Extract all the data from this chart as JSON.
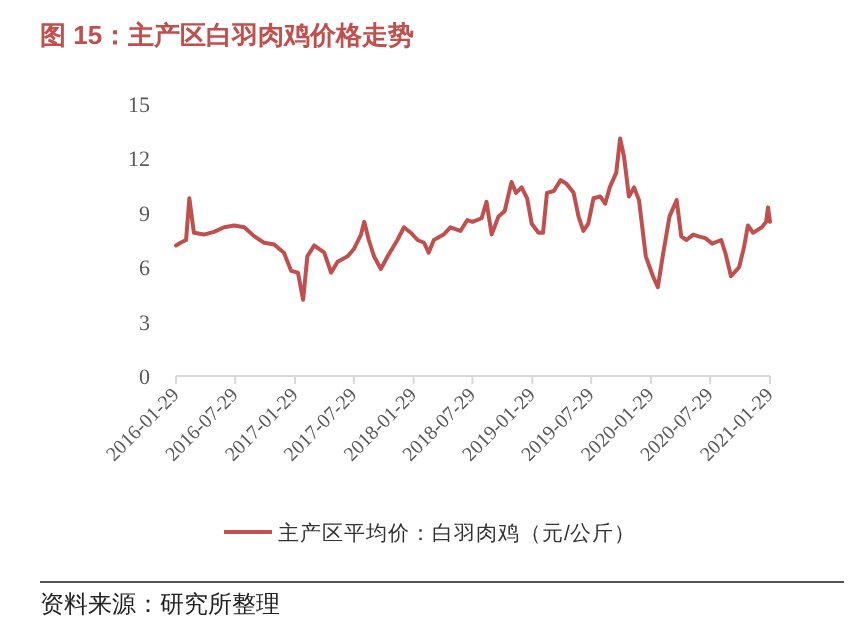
{
  "chart_data": {
    "type": "line",
    "title": "图 15：主产区白羽肉鸡价格走势",
    "annotations": [
      "资料来源：研究所整理"
    ],
    "x": [
      "2016-01-29",
      "2016-02-12",
      "2016-02-29",
      "2016-03-10",
      "2016-03-24",
      "2016-04-24",
      "2016-05-25",
      "2016-06-25",
      "2016-07-26",
      "2016-08-26",
      "2016-09-26",
      "2016-10-26",
      "2016-11-26",
      "2016-12-26",
      "2017-01-17",
      "2017-02-07",
      "2017-02-23",
      "2017-03-08",
      "2017-03-29",
      "2017-04-29",
      "2017-05-20",
      "2017-06-09",
      "2017-07-10",
      "2017-07-29",
      "2017-08-20",
      "2017-08-30",
      "2017-09-13",
      "2017-09-29",
      "2017-10-20",
      "2017-11-10",
      "2017-12-10",
      "2017-12-30",
      "2018-01-20",
      "2018-02-10",
      "2018-03-02",
      "2018-03-16",
      "2018-04-01",
      "2018-05-01",
      "2018-05-22",
      "2018-06-22",
      "2018-07-13",
      "2018-07-29",
      "2018-08-26",
      "2018-09-10",
      "2018-09-26",
      "2018-10-17",
      "2018-11-05",
      "2018-11-26",
      "2018-12-10",
      "2018-12-27",
      "2019-01-13",
      "2019-01-27",
      "2019-02-17",
      "2019-03-03",
      "2019-03-15",
      "2019-04-05",
      "2019-04-26",
      "2019-05-14",
      "2019-06-05",
      "2019-06-20",
      "2019-07-05",
      "2019-07-20",
      "2019-08-05",
      "2019-08-26",
      "2019-09-10",
      "2019-09-24",
      "2019-10-14",
      "2019-10-26",
      "2019-11-07",
      "2019-11-22",
      "2019-12-08",
      "2019-12-23",
      "2020-01-13",
      "2020-02-04",
      "2020-02-19",
      "2020-03-05",
      "2020-03-26",
      "2020-04-17",
      "2020-05-01",
      "2020-05-17",
      "2020-06-07",
      "2020-06-23",
      "2020-07-14",
      "2020-08-04",
      "2020-09-01",
      "2020-09-15",
      "2020-10-01",
      "2020-10-26",
      "2020-11-10",
      "2020-11-22",
      "2020-12-08",
      "2021-01-04",
      "2021-01-17",
      "2021-01-23",
      "2021-01-29"
    ],
    "series": [
      {
        "name": "主产区平均价：白羽肉鸡（元/公斤）",
        "color": "#c0504d",
        "values": [
          7.2,
          7.35,
          7.5,
          9.8,
          7.9,
          7.8,
          7.95,
          8.2,
          8.3,
          8.2,
          7.7,
          7.35,
          7.25,
          6.8,
          5.8,
          5.7,
          4.2,
          6.6,
          7.2,
          6.8,
          5.7,
          6.3,
          6.6,
          7.0,
          7.8,
          8.5,
          7.5,
          6.6,
          5.9,
          6.6,
          7.5,
          8.2,
          7.9,
          7.5,
          7.35,
          6.8,
          7.5,
          7.8,
          8.2,
          8.0,
          8.6,
          8.5,
          8.7,
          9.6,
          7.8,
          8.8,
          9.1,
          10.7,
          10.1,
          10.4,
          9.8,
          8.4,
          7.9,
          7.9,
          10.1,
          10.2,
          10.8,
          10.6,
          10.1,
          8.8,
          8.0,
          8.4,
          9.8,
          9.9,
          9.5,
          10.4,
          11.2,
          13.1,
          12.1,
          9.9,
          10.4,
          9.7,
          6.6,
          5.5,
          4.9,
          6.6,
          8.8,
          9.7,
          7.7,
          7.5,
          7.8,
          7.7,
          7.6,
          7.3,
          7.5,
          6.7,
          5.5,
          6.0,
          7.1,
          8.3,
          7.9,
          8.2,
          8.5,
          9.3,
          8.5
        ]
      }
    ],
    "xlim": [
      "2016-01-29",
      "2021-01-29"
    ],
    "xticks": [
      "2016-01-29",
      "2016-07-29",
      "2017-01-29",
      "2017-07-29",
      "2018-01-29",
      "2018-07-29",
      "2019-01-29",
      "2019-07-29",
      "2020-01-29",
      "2020-07-29",
      "2021-01-29"
    ],
    "ylim": [
      0,
      15
    ],
    "yticks": [
      0,
      3,
      6,
      9,
      12,
      15
    ],
    "grid": false,
    "legend": "bottom"
  }
}
